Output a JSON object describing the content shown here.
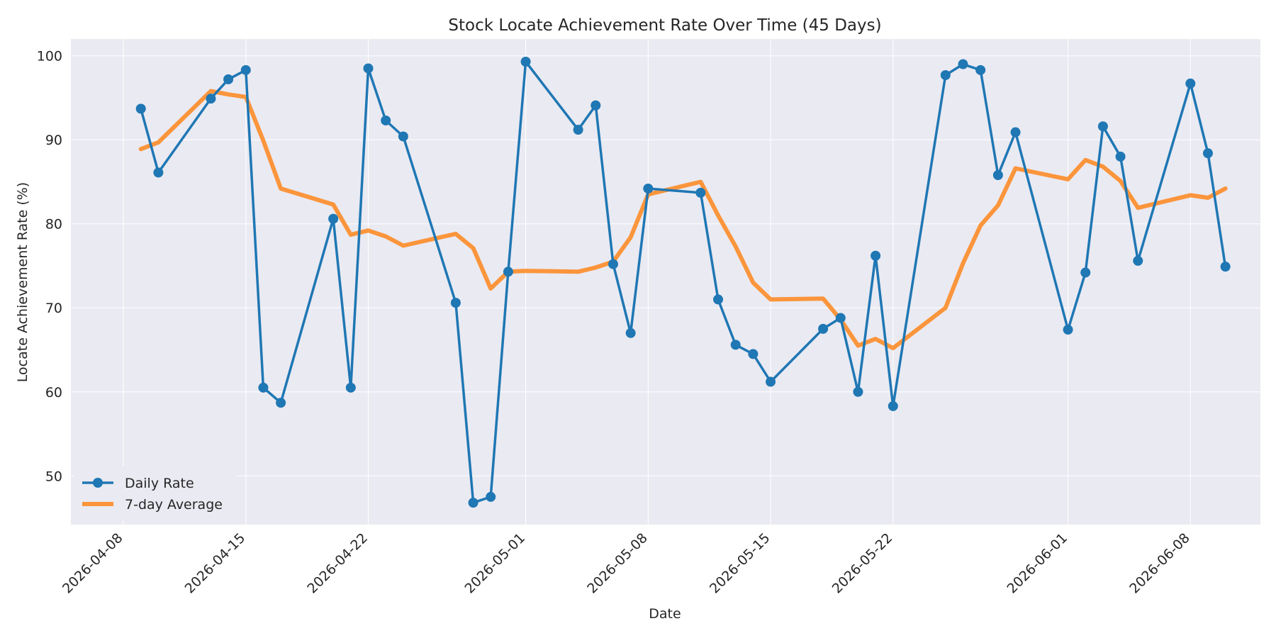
{
  "chart_data": {
    "type": "line",
    "title": "Stock Locate Achievement Rate Over Time (45 Days)",
    "xlabel": "Date",
    "ylabel": "Locate Achievement Rate (%)",
    "x_tick_labels": [
      "2026-04-08",
      "2026-04-15",
      "2026-04-22",
      "2026-05-01",
      "2026-05-08",
      "2026-05-15",
      "2026-05-22",
      "2026-06-01",
      "2026-06-08"
    ],
    "y_tick_labels": [
      "50",
      "60",
      "70",
      "80",
      "90",
      "100"
    ],
    "y_ticks": [
      50,
      60,
      70,
      80,
      90,
      100
    ],
    "xlim": [
      "2026-04-05",
      "2026-06-12"
    ],
    "ylim": [
      44.2,
      102.0
    ],
    "grid": true,
    "legend_position": "lower-left",
    "colors": {
      "plot_bg": "#eaeaf2",
      "grid": "#ffffff",
      "daily": "#1f77b4",
      "avg": "#ff7f0e"
    },
    "series": [
      {
        "name": "Daily Rate",
        "marker": "circle",
        "x": [
          "2026-04-09",
          "2026-04-10",
          "2026-04-13",
          "2026-04-14",
          "2026-04-15",
          "2026-04-16",
          "2026-04-17",
          "2026-04-20",
          "2026-04-21",
          "2026-04-22",
          "2026-04-23",
          "2026-04-24",
          "2026-04-27",
          "2026-04-28",
          "2026-04-29",
          "2026-04-30",
          "2026-05-01",
          "2026-05-04",
          "2026-05-05",
          "2026-05-06",
          "2026-05-07",
          "2026-05-08",
          "2026-05-11",
          "2026-05-12",
          "2026-05-13",
          "2026-05-14",
          "2026-05-15",
          "2026-05-18",
          "2026-05-19",
          "2026-05-20",
          "2026-05-21",
          "2026-05-22",
          "2026-05-25",
          "2026-05-26",
          "2026-05-27",
          "2026-05-28",
          "2026-05-29",
          "2026-06-01",
          "2026-06-02",
          "2026-06-03",
          "2026-06-04",
          "2026-06-05",
          "2026-06-08",
          "2026-06-09",
          "2026-06-10"
        ],
        "values": [
          93.7,
          86.1,
          94.9,
          97.2,
          98.3,
          60.5,
          58.7,
          80.6,
          60.5,
          98.5,
          92.3,
          90.4,
          70.6,
          46.8,
          47.5,
          74.3,
          99.3,
          91.2,
          94.1,
          75.2,
          67.0,
          84.2,
          83.7,
          71.0,
          65.6,
          64.5,
          61.2,
          67.5,
          68.8,
          60.0,
          76.2,
          58.3,
          97.7,
          99.0,
          98.3,
          85.8,
          90.9,
          67.4,
          74.2,
          91.6,
          88.0,
          75.6,
          96.7,
          88.4,
          74.9
        ]
      },
      {
        "name": "7-day Average",
        "marker": "none",
        "x": [
          "2026-04-09",
          "2026-04-10",
          "2026-04-13",
          "2026-04-14",
          "2026-04-15",
          "2026-04-16",
          "2026-04-17",
          "2026-04-20",
          "2026-04-21",
          "2026-04-22",
          "2026-04-23",
          "2026-04-24",
          "2026-04-27",
          "2026-04-28",
          "2026-04-29",
          "2026-04-30",
          "2026-05-01",
          "2026-05-04",
          "2026-05-05",
          "2026-05-06",
          "2026-05-07",
          "2026-05-08",
          "2026-05-11",
          "2026-05-12",
          "2026-05-13",
          "2026-05-14",
          "2026-05-15",
          "2026-05-18",
          "2026-05-19",
          "2026-05-20",
          "2026-05-21",
          "2026-05-22",
          "2026-05-25",
          "2026-05-26",
          "2026-05-27",
          "2026-05-28",
          "2026-05-29",
          "2026-06-01",
          "2026-06-02",
          "2026-06-03",
          "2026-06-04",
          "2026-06-05",
          "2026-06-08",
          "2026-06-09",
          "2026-06-10"
        ],
        "values": [
          88.9,
          89.7,
          95.8,
          95.4,
          95.1,
          89.9,
          84.2,
          82.3,
          78.7,
          79.2,
          78.5,
          77.4,
          78.8,
          77.1,
          72.3,
          74.3,
          74.4,
          74.3,
          74.8,
          75.5,
          78.4,
          83.5,
          85.0,
          81.0,
          77.3,
          73.0,
          71.0,
          71.1,
          68.6,
          65.5,
          66.3,
          65.2,
          70.0,
          75.3,
          79.8,
          82.2,
          86.6,
          85.3,
          87.6,
          86.8,
          85.1,
          81.9,
          83.4,
          83.1,
          84.2
        ]
      }
    ]
  }
}
